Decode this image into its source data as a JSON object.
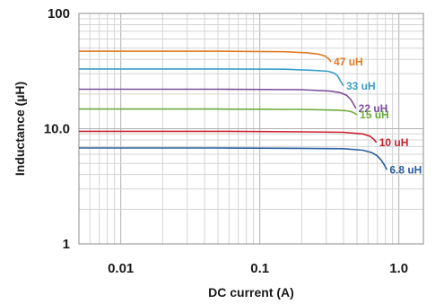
{
  "chart_data": {
    "type": "line",
    "title": "",
    "xlabel": "DC current (A)",
    "ylabel": "Inductance (µH)",
    "x_scale": "log",
    "y_scale": "log",
    "xlim": [
      0.005,
      1.5
    ],
    "ylim": [
      1,
      100
    ],
    "grid": true,
    "x_ticks": [
      {
        "value": 0.01,
        "label": "0.01"
      },
      {
        "value": 0.1,
        "label": "0.1"
      },
      {
        "value": 1,
        "label": "1.0"
      }
    ],
    "y_ticks": [
      {
        "value": 1,
        "label": "1"
      },
      {
        "value": 10,
        "label": "10.0"
      },
      {
        "value": 100,
        "label": "100"
      }
    ],
    "series": [
      {
        "name": "47 uH",
        "color": "#e07b24",
        "x": [
          0.005,
          0.05,
          0.15,
          0.22,
          0.26,
          0.29,
          0.31,
          0.325
        ],
        "y": [
          47,
          47,
          46.5,
          45.5,
          44.5,
          43,
          41,
          38
        ]
      },
      {
        "name": "33 uH",
        "color": "#3aa0c8",
        "x": [
          0.005,
          0.05,
          0.15,
          0.25,
          0.31,
          0.34,
          0.36,
          0.38,
          0.4
        ],
        "y": [
          33,
          33,
          32.8,
          32,
          31.5,
          30.5,
          29,
          26,
          23.5
        ]
      },
      {
        "name": "22 uH",
        "color": "#7b4f9d",
        "x": [
          0.005,
          0.05,
          0.2,
          0.32,
          0.38,
          0.42,
          0.45,
          0.47,
          0.49
        ],
        "y": [
          22,
          22,
          21.8,
          21.2,
          20.5,
          19.5,
          18,
          16.5,
          15
        ]
      },
      {
        "name": "15 uH",
        "color": "#6aaa3a",
        "x": [
          0.005,
          0.05,
          0.2,
          0.35,
          0.42,
          0.46,
          0.48,
          0.5
        ],
        "y": [
          14.8,
          14.8,
          14.7,
          14.5,
          14.3,
          14,
          13.6,
          13.2
        ]
      },
      {
        "name": "10 uH",
        "color": "#c8202a",
        "x": [
          0.005,
          0.05,
          0.2,
          0.4,
          0.55,
          0.62,
          0.66,
          0.69
        ],
        "y": [
          9.5,
          9.5,
          9.4,
          9.3,
          9.0,
          8.6,
          8.1,
          7.6
        ]
      },
      {
        "name": "6.8 uH",
        "color": "#2a5e9e",
        "x": [
          0.005,
          0.05,
          0.2,
          0.4,
          0.55,
          0.64,
          0.7,
          0.75,
          0.79,
          0.82
        ],
        "y": [
          6.8,
          6.8,
          6.75,
          6.7,
          6.5,
          6.2,
          5.8,
          5.3,
          4.8,
          4.4
        ]
      }
    ]
  }
}
